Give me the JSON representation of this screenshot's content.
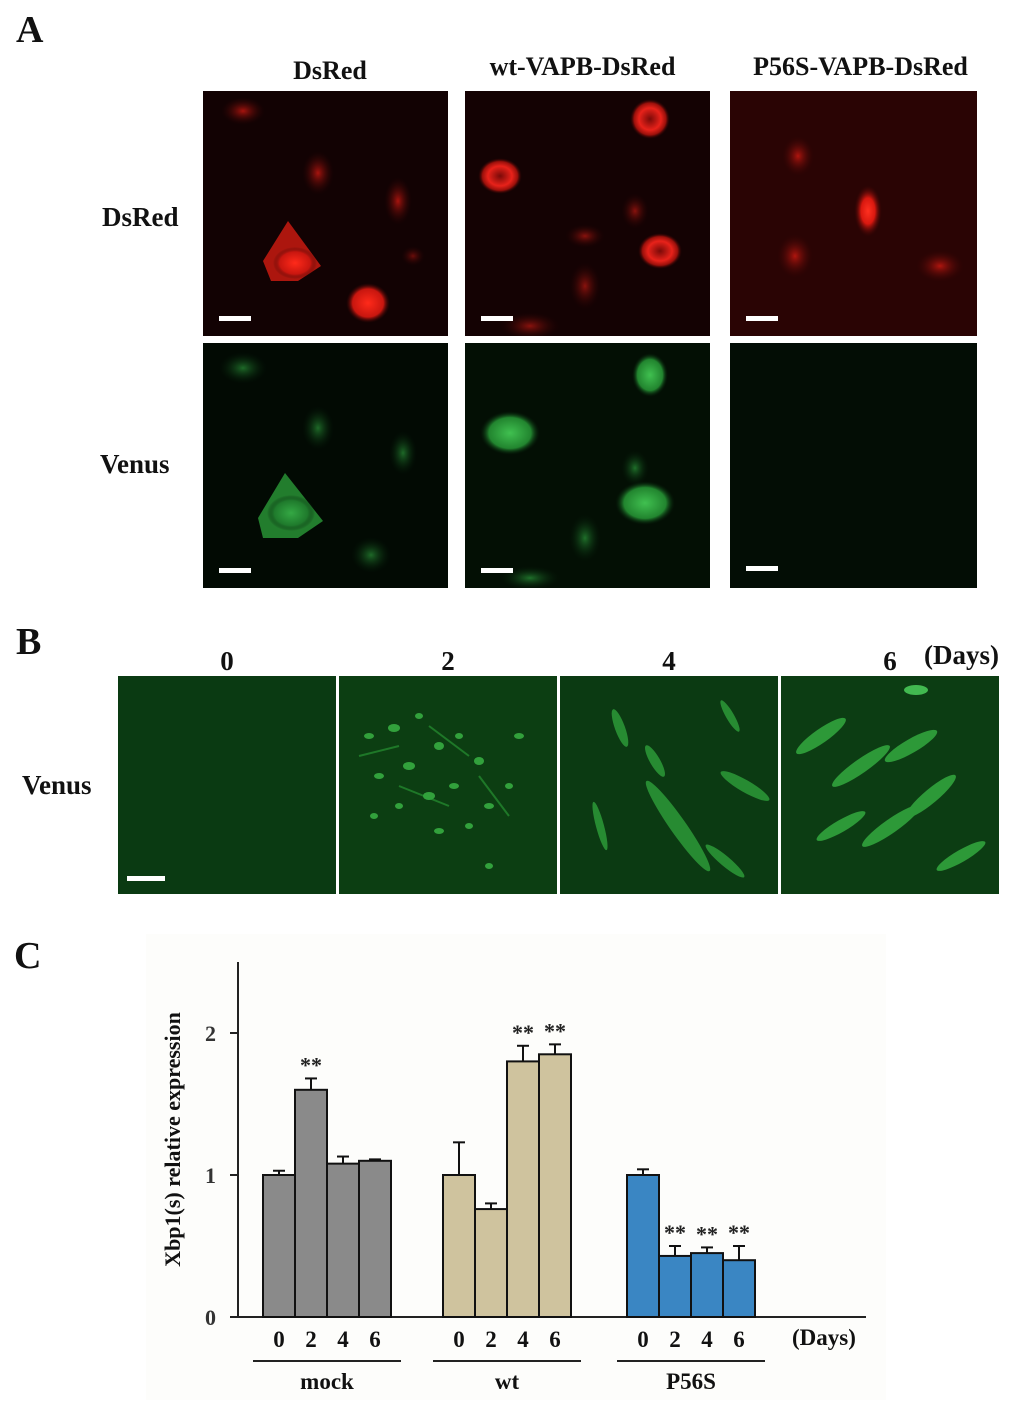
{
  "figure": {
    "panel_a": {
      "letter": "A",
      "columns": [
        "DsRed",
        "wt-VAPB-DsRed",
        "P56S-VAPB-DsRed"
      ],
      "rows": [
        "DsRed",
        "Venus"
      ]
    },
    "panel_b": {
      "letter": "B",
      "days": [
        "0",
        "2",
        "4",
        "6"
      ],
      "days_unit": "(Days)",
      "row_label": "Venus"
    },
    "panel_c": {
      "letter": "C"
    }
  },
  "chart_data": {
    "type": "bar",
    "ylabel": "Xbp1(s) relative expression",
    "xlabel": "(Days)",
    "ylim": [
      0,
      2.5
    ],
    "yticks": [
      0,
      1,
      2
    ],
    "groups": [
      {
        "name": "mock",
        "color": "#8a8a8a",
        "days": [
          "0",
          "2",
          "4",
          "6"
        ],
        "values": [
          1.0,
          1.6,
          1.08,
          1.1
        ],
        "errors": [
          0.03,
          0.08,
          0.05,
          0.01
        ],
        "significance": [
          "",
          "**",
          "",
          ""
        ]
      },
      {
        "name": "wt",
        "color": "#cfc39e",
        "days": [
          "0",
          "2",
          "4",
          "6"
        ],
        "values": [
          1.0,
          0.76,
          1.8,
          1.85
        ],
        "errors": [
          0.23,
          0.04,
          0.11,
          0.07
        ],
        "significance": [
          "",
          "",
          "**",
          "**"
        ]
      },
      {
        "name": "P56S",
        "color": "#3a86c3",
        "days": [
          "0",
          "2",
          "4",
          "6"
        ],
        "values": [
          1.0,
          0.43,
          0.45,
          0.4
        ],
        "errors": [
          0.04,
          0.07,
          0.04,
          0.1
        ],
        "significance": [
          "",
          "**",
          "**",
          "**"
        ]
      }
    ]
  }
}
